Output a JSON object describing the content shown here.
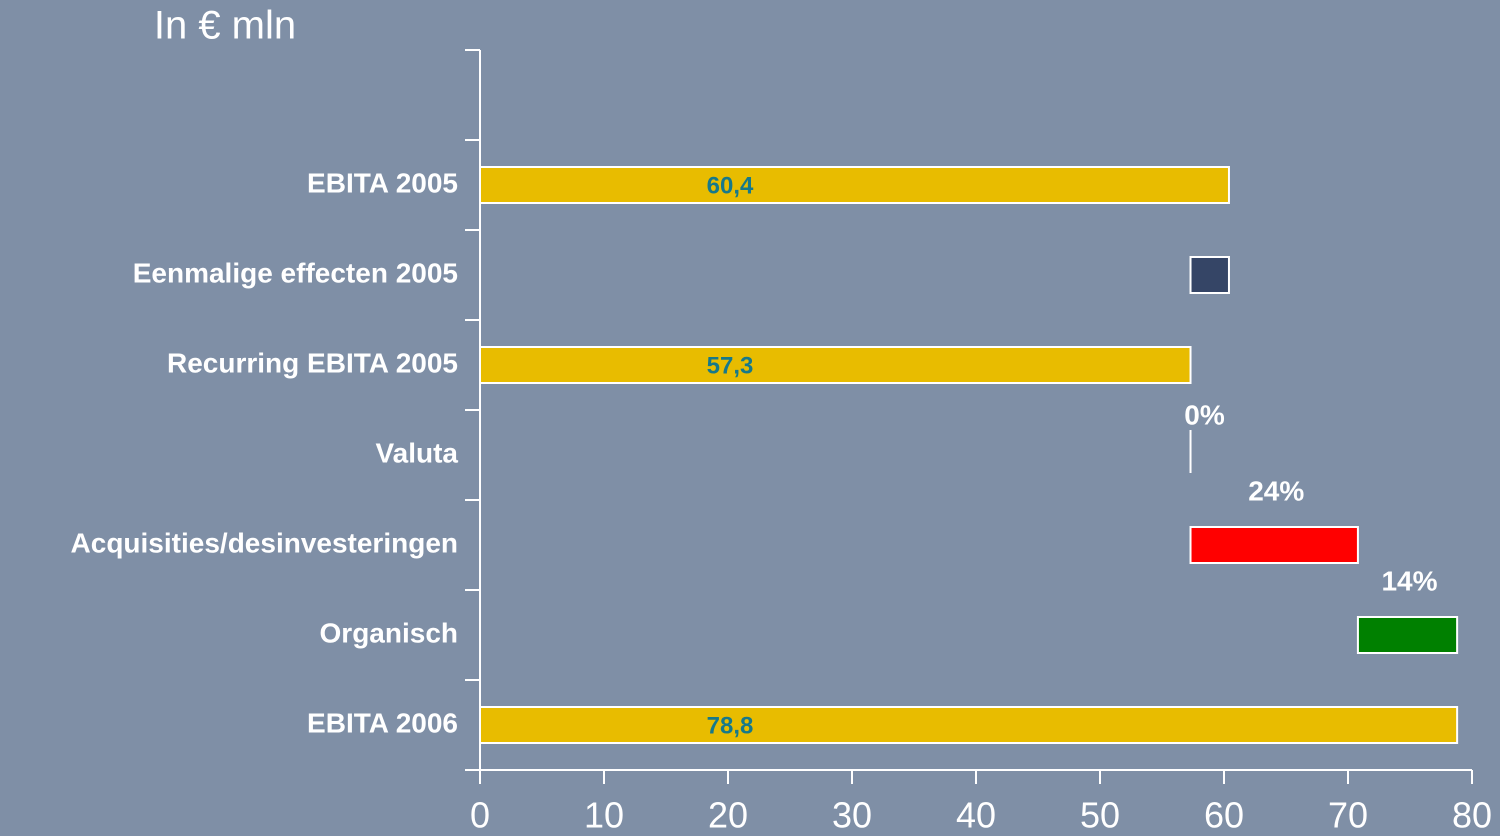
{
  "chart_data": {
    "type": "waterfall",
    "title": "In € mln",
    "categories": [
      null,
      "EBITA 2005",
      "Eenmalige effecten 2005",
      "Recurring EBITA 2005",
      "Valuta",
      "Acquisities/desinvesteringen",
      "Organisch",
      "EBITA 2006"
    ],
    "measure": [
      null,
      "total",
      "relative",
      "total",
      "relative",
      "relative",
      "relative",
      "total"
    ],
    "values": [
      null,
      60.4,
      -3.1,
      57.3,
      0,
      13.5,
      8.0,
      78.8
    ],
    "value_labels": [
      null,
      "60,4",
      null,
      "57,3",
      null,
      null,
      null,
      "78,8"
    ],
    "growth_labels": [
      null,
      null,
      null,
      null,
      "0%",
      "24%",
      "14%",
      null
    ],
    "colors": [
      null,
      "#e8bc00",
      "#354566",
      "#e8bc00",
      "#ffffff",
      "#ff0000",
      "#008000",
      "#e8bc00"
    ],
    "xlim": [
      0,
      80
    ],
    "xticks": [
      0,
      10,
      20,
      30,
      40,
      50,
      60,
      70,
      80
    ]
  }
}
